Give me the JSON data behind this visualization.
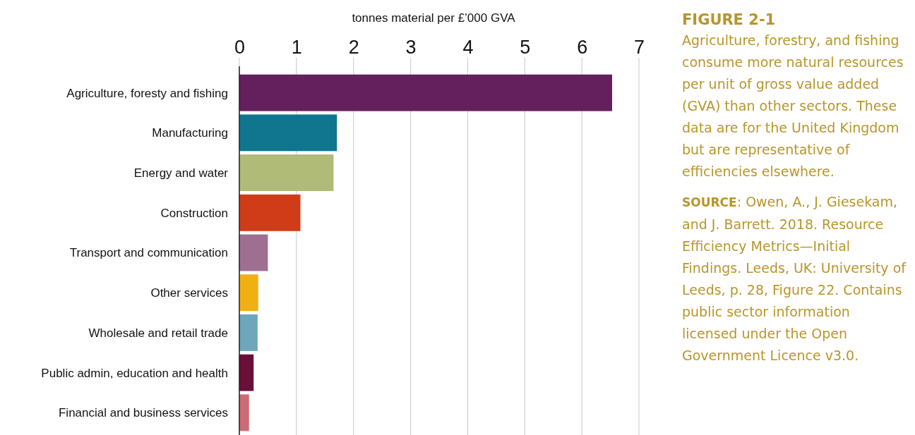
{
  "chart_data": {
    "type": "bar",
    "orientation": "horizontal",
    "title": "FIGURE 2-1",
    "subtitle": "Agriculture, forestry, and fishing consume more natural resources per unit of gross value added (GVA) than other sectors. These data are for the United Kingdom but are representative of efficiencies elsewhere.",
    "xlabel": "tonnes material per £’000 GVA",
    "categories": [
      "Agriculture, foresty and fishing",
      "Manufacturing",
      "Energy and water",
      "Construction",
      "Transport and communication",
      "Other services",
      "Wholesale and retail trade",
      "Public admin, education and health",
      "Financial and business services"
    ],
    "values": [
      6.53,
      1.71,
      1.65,
      1.07,
      0.5,
      0.33,
      0.32,
      0.25,
      0.17
    ],
    "colors": [
      "#64205c",
      "#10758f",
      "#afbb76",
      "#d03c17",
      "#9e6f91",
      "#f0b014",
      "#6ea6bb",
      "#6a0f37",
      "#cc6b76"
    ],
    "xlim": [
      0,
      7
    ],
    "xticks": [
      0,
      1,
      2,
      3,
      4,
      5,
      6,
      7
    ],
    "grid": "x",
    "annotations": [
      "SOURCE: Owen, A., J. Giesekam, and J. Barrett. 2018. Resource Efficiency Metrics—Initial Findings. Leeds, UK: University of Leeds, p. 28, Figure 22. Contains public sector information licensed under the Open Government Licence v3.0."
    ]
  }
}
